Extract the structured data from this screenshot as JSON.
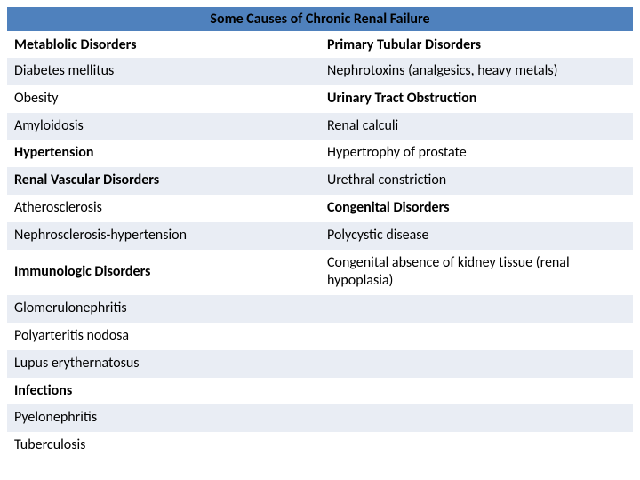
{
  "title": "Some Causes of Chronic Renal Failure",
  "colors": {
    "title_bg": "#4f81bd",
    "header_bg": "#d0d8e8",
    "row_alt_bg": "#e9edf4",
    "row_plain_bg": "#ffffff",
    "text": "#000000"
  },
  "fontsize": {
    "title": 16,
    "body": 16
  },
  "rows": [
    {
      "left": "Metablolic Disorders",
      "left_bold": true,
      "right": "Primary Tubular Disorders",
      "right_bold": true,
      "alt": false,
      "header": true
    },
    {
      "left": "Diabetes mellitus",
      "left_bold": false,
      "right": "Nephrotoxins (analgesics, heavy metals)",
      "right_bold": false,
      "alt": true
    },
    {
      "left": "Obesity",
      "left_bold": false,
      "right": "Urinary Tract Obstruction",
      "right_bold": true,
      "alt": false
    },
    {
      "left": "Amyloidosis",
      "left_bold": false,
      "right": "Renal calculi",
      "right_bold": false,
      "alt": true
    },
    {
      "left": "Hypertension",
      "left_bold": true,
      "right": "Hypertrophy of prostate",
      "right_bold": false,
      "alt": false
    },
    {
      "left": "Renal Vascular Disorders",
      "left_bold": true,
      "right": "Urethral constriction",
      "right_bold": false,
      "alt": true
    },
    {
      "left": "Atherosclerosis",
      "left_bold": false,
      "right": "Congenital Disorders",
      "right_bold": true,
      "alt": false
    },
    {
      "left": "Nephrosclerosis-hypertension",
      "left_bold": false,
      "right": "Polycystic disease",
      "right_bold": false,
      "alt": true
    },
    {
      "left": "Immunologic Disorders",
      "left_bold": true,
      "right": " Congenital absence of kidney tissue (renal hypoplasia)",
      "right_bold": false,
      "alt": false
    },
    {
      "left": "Glomerulonephritis",
      "left_bold": false,
      "right": "",
      "right_bold": false,
      "alt": true
    },
    {
      "left": "Polyarteritis nodosa",
      "left_bold": false,
      "right": "",
      "right_bold": false,
      "alt": false
    },
    {
      "left": "Lupus erythernatosus",
      "left_bold": false,
      "right": "",
      "right_bold": false,
      "alt": true
    },
    {
      "left": "Infections",
      "left_bold": true,
      "right": "",
      "right_bold": false,
      "alt": false
    },
    {
      "left": "Pyelonephritis",
      "left_bold": false,
      "right": "",
      "right_bold": false,
      "alt": true
    },
    {
      "left": "Tuberculosis",
      "left_bold": false,
      "right": "",
      "right_bold": false,
      "alt": false
    }
  ]
}
